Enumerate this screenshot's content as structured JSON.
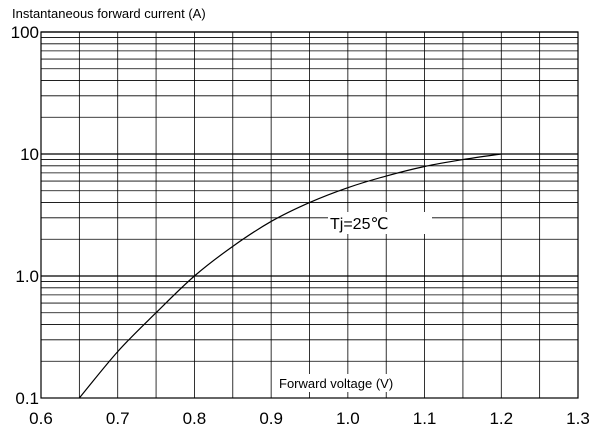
{
  "chart_data": {
    "type": "line",
    "title": "",
    "ylabel": "Instantaneous forward current (A)",
    "xlabel": "Forward voltage (V)",
    "y_scale": "log",
    "xlim": [
      0.6,
      1.3
    ],
    "ylim": [
      0.1,
      100
    ],
    "x_ticks": [
      "0.6",
      "0.7",
      "0.8",
      "0.9",
      "1.0",
      "1.1",
      "1.2",
      "1.3"
    ],
    "y_ticks": [
      "0.1",
      "1.0",
      "10",
      "100"
    ],
    "grid": true,
    "annotation": "Tj=25℃",
    "series": [
      {
        "x": [
          0.65,
          0.7,
          0.75,
          0.8,
          0.85,
          0.9,
          0.95,
          1.0,
          1.05,
          1.1,
          1.15,
          1.2
        ],
        "y": [
          0.1,
          0.24,
          0.5,
          1.0,
          1.75,
          2.8,
          4.0,
          5.3,
          6.6,
          7.9,
          9.0,
          10.0
        ]
      }
    ]
  }
}
